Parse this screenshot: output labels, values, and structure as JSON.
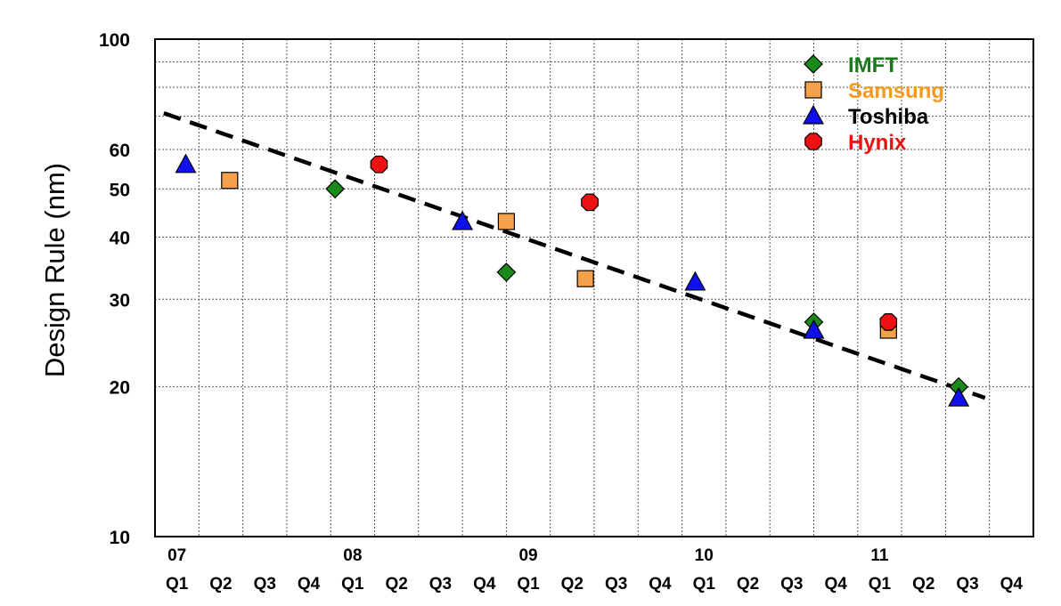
{
  "chart_data": {
    "type": "scatter",
    "title": "",
    "xlabel": "",
    "ylabel": "Design Rule (nm)",
    "y_scale": "log",
    "ylim": [
      10,
      100
    ],
    "yticks": [
      10,
      20,
      30,
      40,
      50,
      60,
      100
    ],
    "quarters": [
      "Q1",
      "Q2",
      "Q3",
      "Q4",
      "Q1",
      "Q2",
      "Q3",
      "Q4",
      "Q1",
      "Q2",
      "Q3",
      "Q4",
      "Q1",
      "Q2",
      "Q3",
      "Q4",
      "Q1",
      "Q2",
      "Q3",
      "Q4"
    ],
    "years": [
      "07",
      "08",
      "09",
      "10",
      "11"
    ],
    "grid": true,
    "legend_position": "top-right",
    "series": [
      {
        "name": "IMFT",
        "marker": "diamond",
        "color": "#1a8a1a",
        "label_color": "#1a7a1a",
        "points": [
          {
            "x": 3.6,
            "y": 50
          },
          {
            "x": 7.5,
            "y": 34
          },
          {
            "x": 14.5,
            "y": 27
          },
          {
            "x": 17.8,
            "y": 20
          }
        ]
      },
      {
        "name": "Samsung",
        "marker": "square",
        "color": "#f5a04a",
        "label_color": "#f59a1f",
        "points": [
          {
            "x": 1.2,
            "y": 52
          },
          {
            "x": 7.5,
            "y": 43
          },
          {
            "x": 9.3,
            "y": 33
          },
          {
            "x": 16.2,
            "y": 26
          }
        ]
      },
      {
        "name": "Toshiba",
        "marker": "triangle",
        "color": "#1010ee",
        "label_color": "#000000",
        "points": [
          {
            "x": 0.2,
            "y": 56
          },
          {
            "x": 6.5,
            "y": 43
          },
          {
            "x": 11.8,
            "y": 32.5
          },
          {
            "x": 14.5,
            "y": 26
          },
          {
            "x": 17.8,
            "y": 19
          }
        ]
      },
      {
        "name": "Hynix",
        "marker": "octagon",
        "color": "#ee1111",
        "label_color": "#ee1111",
        "points": [
          {
            "x": 4.6,
            "y": 56
          },
          {
            "x": 9.4,
            "y": 47
          },
          {
            "x": 16.2,
            "y": 27
          }
        ]
      }
    ],
    "trendline": {
      "style": "dashed",
      "color": "#000000",
      "from": {
        "x": -0.3,
        "y": 71
      },
      "to": {
        "x": 18.4,
        "y": 19
      }
    }
  }
}
